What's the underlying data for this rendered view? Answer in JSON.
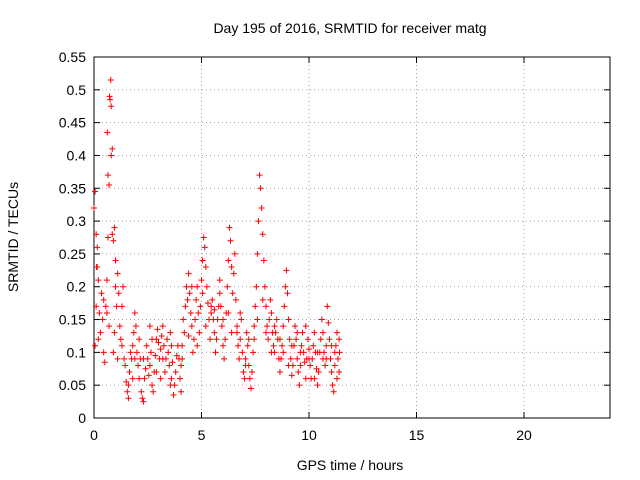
{
  "chart_data": {
    "type": "scatter",
    "title": "Day 195 of 2016, SRMTID for receiver matg",
    "xlabel": "GPS time / hours",
    "ylabel": "SRMTID / TECUs",
    "xlim": [
      0,
      24
    ],
    "ylim": [
      0,
      0.55
    ],
    "xticks": [
      0,
      5,
      10,
      15,
      20
    ],
    "yticks": [
      0,
      0.05,
      0.1,
      0.15,
      0.2,
      0.25,
      0.3,
      0.35,
      0.4,
      0.45,
      0.5,
      0.55
    ],
    "grid": true,
    "marker": "+",
    "series": [
      {
        "name": "SRMTID",
        "color": "#ff0000",
        "points": [
          [
            0.0,
            0.32
          ],
          [
            0.05,
            0.345
          ],
          [
            0.1,
            0.28
          ],
          [
            0.12,
            0.23
          ],
          [
            0.15,
            0.26
          ],
          [
            0.2,
            0.21
          ],
          [
            0.05,
            0.11
          ],
          [
            0.1,
            0.17
          ],
          [
            0.2,
            0.12
          ],
          [
            0.3,
            0.13
          ],
          [
            0.35,
            0.19
          ],
          [
            0.4,
            0.15
          ],
          [
            0.45,
            0.1
          ],
          [
            0.5,
            0.085
          ],
          [
            0.55,
            0.17
          ],
          [
            0.6,
            0.21
          ],
          [
            0.65,
            0.275
          ],
          [
            0.65,
            0.37
          ],
          [
            0.62,
            0.435
          ],
          [
            0.7,
            0.355
          ],
          [
            0.72,
            0.49
          ],
          [
            0.75,
            0.485
          ],
          [
            0.78,
            0.515
          ],
          [
            0.8,
            0.475
          ],
          [
            0.8,
            0.4
          ],
          [
            0.85,
            0.41
          ],
          [
            0.85,
            0.28
          ],
          [
            0.9,
            0.27
          ],
          [
            0.95,
            0.29
          ],
          [
            1.0,
            0.24
          ],
          [
            1.0,
            0.2
          ],
          [
            1.05,
            0.17
          ],
          [
            1.1,
            0.22
          ],
          [
            1.15,
            0.19
          ],
          [
            1.2,
            0.14
          ],
          [
            1.25,
            0.12
          ],
          [
            1.3,
            0.17
          ],
          [
            1.35,
            0.2
          ],
          [
            1.4,
            0.09
          ],
          [
            1.45,
            0.08
          ],
          [
            1.5,
            0.055
          ],
          [
            1.55,
            0.04
          ],
          [
            1.6,
            0.03
          ],
          [
            1.65,
            0.07
          ],
          [
            1.7,
            0.1
          ],
          [
            1.75,
            0.09
          ],
          [
            1.8,
            0.11
          ],
          [
            1.85,
            0.13
          ],
          [
            1.9,
            0.16
          ],
          [
            1.95,
            0.14
          ],
          [
            2.0,
            0.1
          ],
          [
            2.05,
            0.08
          ],
          [
            2.1,
            0.06
          ],
          [
            2.15,
            0.09
          ],
          [
            2.2,
            0.04
          ],
          [
            2.25,
            0.03
          ],
          [
            2.3,
            0.025
          ],
          [
            2.35,
            0.06
          ],
          [
            2.4,
            0.075
          ],
          [
            2.45,
            0.11
          ],
          [
            2.5,
            0.09
          ],
          [
            2.55,
            0.065
          ],
          [
            2.6,
            0.08
          ],
          [
            2.65,
            0.1
          ],
          [
            2.7,
            0.05
          ],
          [
            2.75,
            0.04
          ],
          [
            2.8,
            0.07
          ],
          [
            2.85,
            0.095
          ],
          [
            2.9,
            0.12
          ],
          [
            2.95,
            0.135
          ],
          [
            3.0,
            0.115
          ],
          [
            3.05,
            0.09
          ],
          [
            3.1,
            0.105
          ],
          [
            3.15,
            0.125
          ],
          [
            3.2,
            0.14
          ],
          [
            3.25,
            0.11
          ],
          [
            3.3,
            0.07
          ],
          [
            3.35,
            0.09
          ],
          [
            3.4,
            0.12
          ],
          [
            3.45,
            0.1
          ],
          [
            3.5,
            0.08
          ],
          [
            3.55,
            0.05
          ],
          [
            3.6,
            0.06
          ],
          [
            3.65,
            0.085
          ],
          [
            3.7,
            0.035
          ],
          [
            3.75,
            0.05
          ],
          [
            3.8,
            0.07
          ],
          [
            3.85,
            0.095
          ],
          [
            3.9,
            0.11
          ],
          [
            3.95,
            0.09
          ],
          [
            4.0,
            0.06
          ],
          [
            4.05,
            0.08
          ],
          [
            4.1,
            0.11
          ],
          [
            4.15,
            0.15
          ],
          [
            4.2,
            0.13
          ],
          [
            4.25,
            0.17
          ],
          [
            4.3,
            0.2
          ],
          [
            4.35,
            0.18
          ],
          [
            4.4,
            0.22
          ],
          [
            4.45,
            0.19
          ],
          [
            4.5,
            0.16
          ],
          [
            4.55,
            0.14
          ],
          [
            4.6,
            0.1
          ],
          [
            4.65,
            0.12
          ],
          [
            4.7,
            0.15
          ],
          [
            4.75,
            0.18
          ],
          [
            4.8,
            0.2
          ],
          [
            4.85,
            0.16
          ],
          [
            4.9,
            0.13
          ],
          [
            4.95,
            0.17
          ],
          [
            5.0,
            0.21
          ],
          [
            5.05,
            0.24
          ],
          [
            5.1,
            0.275
          ],
          [
            5.15,
            0.26
          ],
          [
            5.2,
            0.23
          ],
          [
            5.25,
            0.2
          ],
          [
            5.3,
            0.175
          ],
          [
            5.35,
            0.15
          ],
          [
            5.4,
            0.12
          ],
          [
            5.45,
            0.16
          ],
          [
            5.5,
            0.18
          ],
          [
            5.55,
            0.15
          ],
          [
            5.6,
            0.13
          ],
          [
            5.65,
            0.1
          ],
          [
            5.7,
            0.12
          ],
          [
            5.75,
            0.15
          ],
          [
            5.8,
            0.17
          ],
          [
            5.85,
            0.19
          ],
          [
            5.9,
            0.17
          ],
          [
            5.95,
            0.14
          ],
          [
            6.0,
            0.11
          ],
          [
            6.05,
            0.09
          ],
          [
            6.1,
            0.12
          ],
          [
            6.15,
            0.16
          ],
          [
            6.2,
            0.2
          ],
          [
            6.25,
            0.24
          ],
          [
            6.3,
            0.29
          ],
          [
            6.35,
            0.27
          ],
          [
            6.4,
            0.23
          ],
          [
            6.45,
            0.19
          ],
          [
            6.5,
            0.22
          ],
          [
            6.55,
            0.25
          ],
          [
            6.6,
            0.18
          ],
          [
            6.65,
            0.14
          ],
          [
            6.7,
            0.11
          ],
          [
            6.75,
            0.09
          ],
          [
            6.8,
            0.12
          ],
          [
            6.85,
            0.15
          ],
          [
            6.9,
            0.1
          ],
          [
            6.95,
            0.07
          ],
          [
            7.0,
            0.06
          ],
          [
            7.05,
            0.09
          ],
          [
            7.1,
            0.13
          ],
          [
            7.15,
            0.11
          ],
          [
            7.2,
            0.08
          ],
          [
            7.25,
            0.06
          ],
          [
            7.3,
            0.045
          ],
          [
            7.35,
            0.07
          ],
          [
            7.4,
            0.1
          ],
          [
            7.45,
            0.14
          ],
          [
            7.5,
            0.17
          ],
          [
            7.55,
            0.2
          ],
          [
            7.6,
            0.25
          ],
          [
            7.65,
            0.3
          ],
          [
            7.7,
            0.37
          ],
          [
            7.75,
            0.35
          ],
          [
            7.8,
            0.32
          ],
          [
            7.85,
            0.28
          ],
          [
            7.9,
            0.24
          ],
          [
            7.95,
            0.2
          ],
          [
            8.0,
            0.17
          ],
          [
            8.05,
            0.14
          ],
          [
            8.1,
            0.12
          ],
          [
            8.15,
            0.15
          ],
          [
            8.2,
            0.18
          ],
          [
            8.25,
            0.16
          ],
          [
            8.3,
            0.13
          ],
          [
            8.35,
            0.11
          ],
          [
            8.4,
            0.1
          ],
          [
            8.45,
            0.13
          ],
          [
            8.5,
            0.15
          ],
          [
            8.55,
            0.12
          ],
          [
            8.6,
            0.09
          ],
          [
            8.65,
            0.07
          ],
          [
            8.7,
            0.09
          ],
          [
            8.75,
            0.11
          ],
          [
            8.8,
            0.14
          ],
          [
            8.85,
            0.17
          ],
          [
            8.9,
            0.2
          ],
          [
            8.95,
            0.225
          ],
          [
            9.0,
            0.19
          ],
          [
            9.05,
            0.15
          ],
          [
            9.1,
            0.12
          ],
          [
            9.15,
            0.09
          ],
          [
            9.2,
            0.065
          ],
          [
            9.25,
            0.08
          ],
          [
            9.3,
            0.11
          ],
          [
            9.35,
            0.14
          ],
          [
            9.4,
            0.12
          ],
          [
            9.45,
            0.09
          ],
          [
            9.5,
            0.07
          ],
          [
            9.55,
            0.05
          ],
          [
            9.6,
            0.08
          ],
          [
            9.65,
            0.11
          ],
          [
            9.7,
            0.13
          ],
          [
            9.75,
            0.1
          ],
          [
            9.8,
            0.085
          ],
          [
            9.85,
            0.06
          ],
          [
            9.9,
            0.09
          ],
          [
            9.95,
            0.12
          ],
          [
            10.0,
            0.105
          ],
          [
            10.05,
            0.08
          ],
          [
            10.1,
            0.06
          ],
          [
            10.15,
            0.09
          ],
          [
            10.2,
            0.11
          ],
          [
            10.25,
            0.13
          ],
          [
            10.3,
            0.1
          ],
          [
            10.35,
            0.075
          ],
          [
            10.4,
            0.05
          ],
          [
            10.45,
            0.07
          ],
          [
            10.5,
            0.1
          ],
          [
            10.55,
            0.12
          ],
          [
            10.6,
            0.15
          ],
          [
            10.65,
            0.13
          ],
          [
            10.7,
            0.1
          ],
          [
            10.75,
            0.08
          ],
          [
            10.8,
            0.11
          ],
          [
            10.85,
            0.17
          ],
          [
            10.9,
            0.145
          ],
          [
            10.95,
            0.12
          ],
          [
            11.0,
            0.09
          ],
          [
            11.05,
            0.07
          ],
          [
            11.1,
            0.05
          ],
          [
            11.15,
            0.04
          ],
          [
            11.2,
            0.08
          ],
          [
            11.25,
            0.11
          ],
          [
            11.3,
            0.13
          ],
          [
            11.35,
            0.09
          ],
          [
            11.4,
            0.07
          ],
          [
            11.42,
            0.1
          ],
          [
            0.25,
            0.16
          ],
          [
            0.45,
            0.18
          ],
          [
            0.7,
            0.14
          ],
          [
            0.95,
            0.13
          ],
          [
            1.3,
            0.11
          ],
          [
            1.8,
            0.06
          ],
          [
            2.3,
            0.09
          ],
          [
            2.7,
            0.12
          ],
          [
            3.2,
            0.09
          ],
          [
            3.6,
            0.11
          ],
          [
            4.1,
            0.09
          ],
          [
            4.4,
            0.125
          ],
          [
            4.8,
            0.11
          ],
          [
            5.2,
            0.14
          ],
          [
            5.6,
            0.165
          ],
          [
            6.0,
            0.15
          ],
          [
            6.4,
            0.13
          ],
          [
            6.8,
            0.16
          ],
          [
            7.2,
            0.12
          ],
          [
            7.6,
            0.15
          ],
          [
            8.0,
            0.13
          ],
          [
            8.4,
            0.14
          ],
          [
            8.8,
            0.1
          ],
          [
            9.2,
            0.11
          ],
          [
            9.6,
            0.1
          ],
          [
            10.0,
            0.09
          ],
          [
            10.4,
            0.1
          ],
          [
            10.8,
            0.09
          ],
          [
            11.2,
            0.1
          ],
          [
            11.4,
            0.12
          ],
          [
            0.15,
            0.23
          ],
          [
            0.6,
            0.16
          ],
          [
            1.1,
            0.09
          ],
          [
            1.6,
            0.05
          ],
          [
            2.1,
            0.12
          ],
          [
            2.6,
            0.14
          ],
          [
            3.1,
            0.06
          ],
          [
            3.55,
            0.13
          ],
          [
            4.05,
            0.04
          ],
          [
            4.55,
            0.2
          ],
          [
            5.05,
            0.19
          ],
          [
            5.45,
            0.17
          ],
          [
            5.85,
            0.21
          ],
          [
            6.25,
            0.16
          ],
          [
            6.65,
            0.13
          ],
          [
            7.05,
            0.08
          ],
          [
            7.45,
            0.12
          ],
          [
            7.85,
            0.18
          ],
          [
            8.25,
            0.1
          ],
          [
            8.65,
            0.12
          ],
          [
            9.05,
            0.08
          ],
          [
            9.45,
            0.13
          ],
          [
            9.85,
            0.14
          ],
          [
            10.25,
            0.06
          ],
          [
            10.65,
            0.09
          ],
          [
            11.05,
            0.11
          ],
          [
            11.3,
            0.06
          ],
          [
            0.9,
            0.1
          ],
          [
            1.9,
            0.09
          ],
          [
            2.9,
            0.07
          ]
        ]
      }
    ]
  }
}
